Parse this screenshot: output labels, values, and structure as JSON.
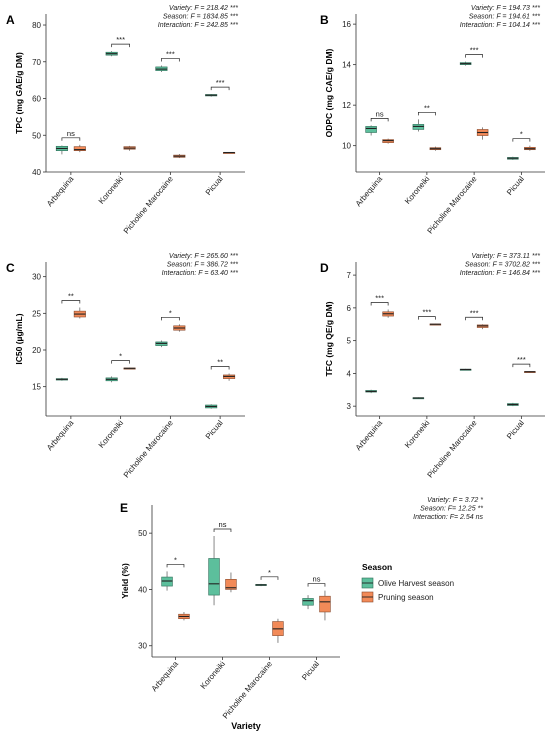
{
  "colors": {
    "olive": "#5cbf9c",
    "olive_edge": "#2d6e58",
    "pruning": "#f28a58",
    "pruning_edge": "#8a4a2c",
    "axis": "#333333",
    "text": "#222222"
  },
  "chart_data": [
    {
      "id": "A",
      "panel_label": "A",
      "type": "box",
      "xlabel": "",
      "ylabel": "TPC (mg GAE/g DM)",
      "categories": [
        "Arbequina",
        "Koroneiki",
        "Picholine Marocaine",
        "Picual"
      ],
      "ylim": [
        40,
        83
      ],
      "yticks": [
        40,
        50,
        60,
        70,
        80
      ],
      "stats": [
        "Variety: F = 218.42 ***",
        "Season: F = 1834.85 ***",
        "Interaction: F = 242.85 ***"
      ],
      "significance": [
        "ns",
        "***",
        "***",
        "***"
      ],
      "series": [
        {
          "name": "Olive Harvest season",
          "boxes": [
            {
              "min": 44.8,
              "q1": 45.8,
              "median": 46.4,
              "q3": 47.0,
              "max": 47.2
            },
            {
              "min": 71.5,
              "q1": 71.8,
              "median": 72.2,
              "q3": 72.6,
              "max": 72.9
            },
            {
              "min": 67.2,
              "q1": 67.6,
              "median": 68.0,
              "q3": 68.6,
              "max": 69.0
            },
            {
              "min": 60.5,
              "q1": 60.7,
              "median": 60.9,
              "q3": 61.1,
              "max": 61.2
            }
          ]
        },
        {
          "name": "Pruning season",
          "boxes": [
            {
              "min": 45.4,
              "q1": 45.8,
              "median": 46.1,
              "q3": 46.9,
              "max": 47.4
            },
            {
              "min": 45.8,
              "q1": 46.2,
              "median": 46.5,
              "q3": 46.9,
              "max": 47.1
            },
            {
              "min": 43.8,
              "q1": 44.0,
              "median": 44.3,
              "q3": 44.6,
              "max": 44.9
            },
            {
              "min": 45.2,
              "q1": 45.25,
              "median": 45.3,
              "q3": 45.35,
              "max": 45.4
            }
          ]
        }
      ]
    },
    {
      "id": "B",
      "panel_label": "B",
      "type": "box",
      "xlabel": "",
      "ylabel": "ODPC (mg CAE/g DM)",
      "categories": [
        "Arbequina",
        "Koroneiki",
        "Picholine Marocaine",
        "Picual"
      ],
      "ylim": [
        8.7,
        16.5
      ],
      "yticks": [
        10,
        12,
        14,
        16
      ],
      "stats": [
        "Variety: F = 194.73 ***",
        "Season: F = 194.61 ***",
        "Interaction: F = 104.14 ***"
      ],
      "significance": [
        "ns",
        "**",
        "***",
        "*"
      ],
      "series": [
        {
          "name": "Olive Harvest season",
          "boxes": [
            {
              "min": 10.5,
              "q1": 10.65,
              "median": 10.85,
              "q3": 10.95,
              "max": 11.0
            },
            {
              "min": 10.7,
              "q1": 10.8,
              "median": 10.95,
              "q3": 11.05,
              "max": 11.3
            },
            {
              "min": 13.95,
              "q1": 14.0,
              "median": 14.05,
              "q3": 14.1,
              "max": 14.15
            },
            {
              "min": 9.3,
              "q1": 9.33,
              "median": 9.38,
              "q3": 9.42,
              "max": 9.45
            }
          ]
        },
        {
          "name": "Pruning season",
          "boxes": [
            {
              "min": 10.1,
              "q1": 10.15,
              "median": 10.25,
              "q3": 10.3,
              "max": 10.35
            },
            {
              "min": 9.75,
              "q1": 9.8,
              "median": 9.85,
              "q3": 9.9,
              "max": 9.95
            },
            {
              "min": 10.3,
              "q1": 10.5,
              "median": 10.65,
              "q3": 10.8,
              "max": 10.9
            },
            {
              "min": 9.75,
              "q1": 9.8,
              "median": 9.85,
              "q3": 9.92,
              "max": 10.0
            }
          ]
        }
      ]
    },
    {
      "id": "C",
      "panel_label": "C",
      "type": "box",
      "xlabel": "",
      "ylabel": "IC50 (µg/mL)",
      "categories": [
        "Arbequina",
        "Koroneiki",
        "Picholine Marocaine",
        "Picual"
      ],
      "ylim": [
        11,
        32
      ],
      "yticks": [
        15,
        20,
        25,
        30
      ],
      "stats": [
        "Variety: F = 265.60 ***",
        "Season: F = 386.72 ***",
        "Interaction: F = 63.40 ***"
      ],
      "significance": [
        "**",
        "*",
        "*",
        "**"
      ],
      "series": [
        {
          "name": "Olive Harvest season",
          "boxes": [
            {
              "min": 15.8,
              "q1": 15.9,
              "median": 16.0,
              "q3": 16.1,
              "max": 16.2
            },
            {
              "min": 15.6,
              "q1": 15.8,
              "median": 16.0,
              "q3": 16.2,
              "max": 16.4
            },
            {
              "min": 20.4,
              "q1": 20.6,
              "median": 20.9,
              "q3": 21.1,
              "max": 21.3
            },
            {
              "min": 12.0,
              "q1": 12.1,
              "median": 12.3,
              "q3": 12.5,
              "max": 12.6
            }
          ]
        },
        {
          "name": "Pruning season",
          "boxes": [
            {
              "min": 24.3,
              "q1": 24.5,
              "median": 24.9,
              "q3": 25.3,
              "max": 25.8
            },
            {
              "min": 17.4,
              "q1": 17.45,
              "median": 17.5,
              "q3": 17.55,
              "max": 17.6
            },
            {
              "min": 22.5,
              "q1": 22.7,
              "median": 23.0,
              "q3": 23.3,
              "max": 23.5
            },
            {
              "min": 15.8,
              "q1": 16.1,
              "median": 16.4,
              "q3": 16.6,
              "max": 16.8
            }
          ]
        }
      ]
    },
    {
      "id": "D",
      "panel_label": "D",
      "type": "box",
      "xlabel": "",
      "ylabel": "TFC (mg QE/g DM)",
      "categories": [
        "Arbequina",
        "Koroneiki",
        "Picholine Marocaine",
        "Picual"
      ],
      "ylim": [
        2.7,
        7.4
      ],
      "yticks": [
        3,
        4,
        5,
        6,
        7
      ],
      "stats": [
        "Variety: F = 373.11 ***",
        "Season: F = 3702.82 ***",
        "Interaction: F = 146.84 ***"
      ],
      "significance": [
        "***",
        "***",
        "***",
        "***"
      ],
      "series": [
        {
          "name": "Olive Harvest season",
          "boxes": [
            {
              "min": 3.4,
              "q1": 3.43,
              "median": 3.45,
              "q3": 3.48,
              "max": 3.5
            },
            {
              "min": 3.23,
              "q1": 3.24,
              "median": 3.25,
              "q3": 3.26,
              "max": 3.27
            },
            {
              "min": 4.1,
              "q1": 4.11,
              "median": 4.12,
              "q3": 4.13,
              "max": 4.14
            },
            {
              "min": 3.0,
              "q1": 3.02,
              "median": 3.05,
              "q3": 3.08,
              "max": 3.1
            }
          ]
        },
        {
          "name": "Pruning season",
          "boxes": [
            {
              "min": 5.7,
              "q1": 5.75,
              "median": 5.82,
              "q3": 5.88,
              "max": 5.95
            },
            {
              "min": 5.48,
              "q1": 5.49,
              "median": 5.5,
              "q3": 5.51,
              "max": 5.52
            },
            {
              "min": 5.35,
              "q1": 5.4,
              "median": 5.45,
              "q3": 5.48,
              "max": 5.5
            },
            {
              "min": 4.02,
              "q1": 4.03,
              "median": 4.05,
              "q3": 4.06,
              "max": 4.07
            }
          ]
        }
      ]
    },
    {
      "id": "E",
      "panel_label": "E",
      "type": "box",
      "xlabel": "Variety",
      "ylabel": "Yield (%)",
      "categories": [
        "Arbequina",
        "Koroneiki",
        "Picholine Marocaine",
        "Picual"
      ],
      "ylim": [
        28,
        55
      ],
      "yticks": [
        30,
        40,
        50
      ],
      "stats": [
        "Variety: F = 3.72 *",
        "Season:  F= 12.25 **",
        "Interaction: F= 2.54 ns"
      ],
      "significance": [
        "*",
        "ns",
        "*",
        "ns"
      ],
      "legend_position": "right",
      "legend_title": "Season",
      "series": [
        {
          "name": "Olive Harvest season",
          "boxes": [
            {
              "min": 39.8,
              "q1": 40.6,
              "median": 41.5,
              "q3": 42.2,
              "max": 43.2
            },
            {
              "min": 37.2,
              "q1": 39.0,
              "median": 41.0,
              "q3": 45.5,
              "max": 49.5
            },
            {
              "min": 40.6,
              "q1": 40.7,
              "median": 40.8,
              "q3": 40.9,
              "max": 41.0
            },
            {
              "min": 36.5,
              "q1": 37.2,
              "median": 38.0,
              "q3": 38.4,
              "max": 39.0
            }
          ]
        },
        {
          "name": "Pruning season",
          "boxes": [
            {
              "min": 34.5,
              "q1": 34.8,
              "median": 35.2,
              "q3": 35.6,
              "max": 36.0
            },
            {
              "min": 39.5,
              "q1": 40.0,
              "median": 40.3,
              "q3": 41.8,
              "max": 43.0
            },
            {
              "min": 30.5,
              "q1": 31.8,
              "median": 33.0,
              "q3": 34.3,
              "max": 34.8
            },
            {
              "min": 34.5,
              "q1": 36.0,
              "median": 37.8,
              "q3": 38.8,
              "max": 39.8
            }
          ]
        }
      ]
    }
  ]
}
